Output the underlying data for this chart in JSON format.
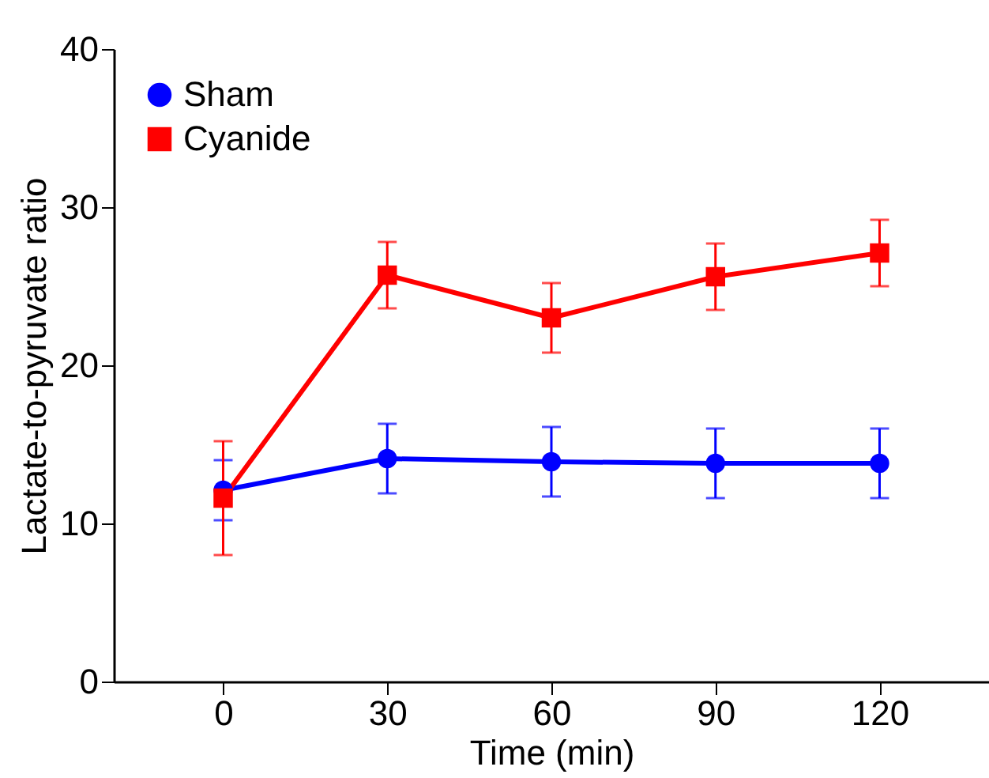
{
  "chart_data": {
    "type": "line",
    "xlabel": "Time (min)",
    "ylabel": "Lactate-to-pyruvate ratio",
    "x": [
      0,
      30,
      60,
      90,
      120
    ],
    "series": [
      {
        "name": "Sham",
        "color": "#0000ff",
        "marker": "circle",
        "values": [
          12.1,
          14.1,
          13.9,
          13.8,
          13.8
        ],
        "errors": [
          1.9,
          2.2,
          2.2,
          2.2,
          2.2
        ]
      },
      {
        "name": "Cyanide",
        "color": "#ff0000",
        "marker": "square",
        "values": [
          11.6,
          25.7,
          23.0,
          25.6,
          27.1
        ],
        "errors": [
          3.6,
          2.1,
          2.2,
          2.1,
          2.1
        ]
      }
    ],
    "xlim": [
      -20,
      140
    ],
    "xticks": [
      0,
      30,
      60,
      90,
      120
    ],
    "ylim": [
      0,
      40
    ],
    "yticks": [
      0,
      10,
      20,
      30,
      40
    ],
    "grid": false,
    "legend": "top left",
    "line_style": "solid"
  }
}
